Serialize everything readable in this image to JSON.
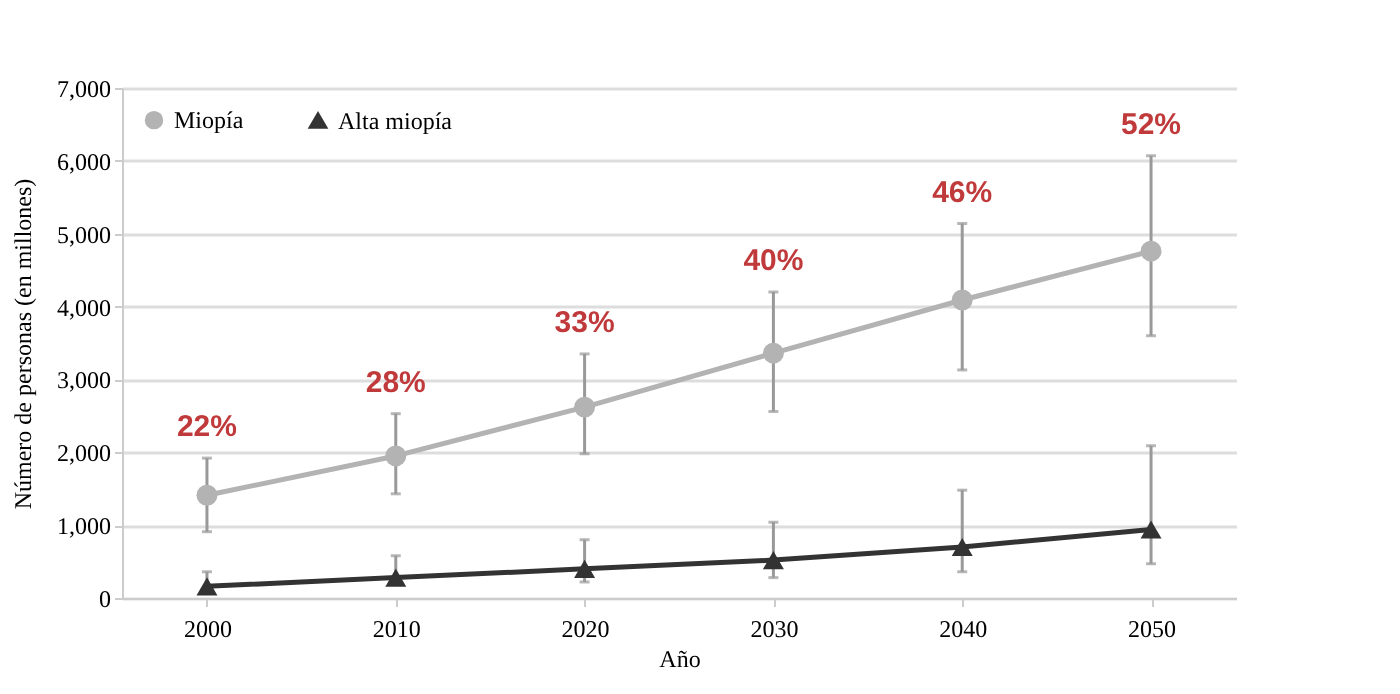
{
  "chart_data": {
    "type": "line",
    "xlabel": "Año",
    "ylabel": "Número de personas (en millones)",
    "categories": [
      "2000",
      "2010",
      "2020",
      "2030",
      "2040",
      "2050"
    ],
    "series": [
      {
        "name": "Miopía",
        "color": "#b3b3b3",
        "marker": "circle",
        "values": [
          1410,
          1950,
          2620,
          3360,
          4090,
          4760
        ],
        "errors": [
          [
            910,
            1920
          ],
          [
            1430,
            2530
          ],
          [
            1980,
            3350
          ],
          [
            2560,
            4200
          ],
          [
            3130,
            5140
          ],
          [
            3600,
            6070
          ]
        ]
      },
      {
        "name": "Alta miopía",
        "color": "#333333",
        "marker": "triangle",
        "values": [
          160,
          280,
          400,
          520,
          700,
          940
        ],
        "errors": [
          [
            100,
            360
          ],
          [
            190,
            580
          ],
          [
            220,
            800
          ],
          [
            280,
            1040
          ],
          [
            360,
            1480
          ],
          [
            470,
            2090
          ]
        ]
      }
    ],
    "annotations": [
      "22%",
      "28%",
      "33%",
      "40%",
      "46%",
      "52%"
    ],
    "ylim": [
      0,
      7000
    ],
    "yticks": [
      0,
      {
        "value": 1000,
        "label": "1,000"
      },
      {
        "value": 2000,
        "label": "2,000"
      },
      {
        "value": 3000,
        "label": "3,000"
      },
      {
        "value": 4000,
        "label": "4,000"
      },
      {
        "value": 5000,
        "label": "5,000"
      },
      {
        "value": 6000,
        "label": "6,000"
      },
      {
        "value": 7000,
        "label": "7,000"
      }
    ],
    "grid": "y",
    "legend": "top left",
    "line_style": "solid"
  }
}
